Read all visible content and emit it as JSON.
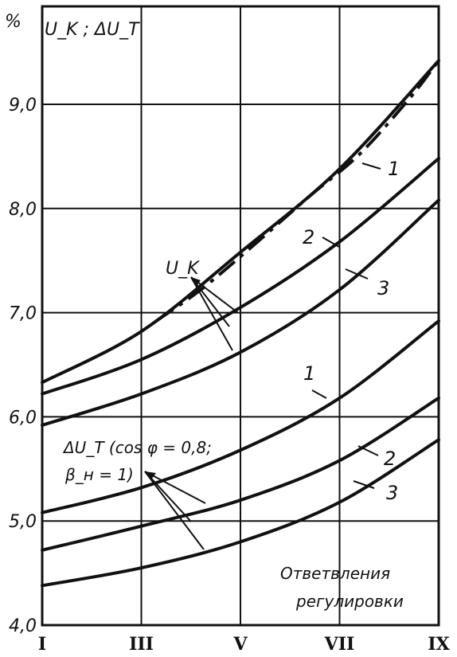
{
  "chart_data": {
    "type": "line",
    "y_unit": "%",
    "y_title": "U_K ; ΔU_T",
    "ylim": [
      4.0,
      9.8
    ],
    "y_ticks": [
      "4,0",
      "5,0",
      "6,0",
      "7,0",
      "8,0",
      "9,0"
    ],
    "x_ticks": [
      "I",
      "III",
      "V",
      "VII",
      "IX"
    ],
    "x_positions": [
      1,
      3,
      5,
      7,
      9
    ],
    "xlim": [
      1,
      9
    ],
    "xlabel_lines": [
      "Ответвления",
      "регулировки"
    ],
    "grid": true,
    "uk_group_label": "U_K",
    "dut_group_label_lines": [
      "ΔU_T (cos φ = 0,8;",
      "β_н = 1)"
    ],
    "series": [
      {
        "group": "uk",
        "name": "1",
        "x": [
          1,
          3,
          5,
          7,
          9
        ],
        "y": [
          6.33,
          6.82,
          7.58,
          8.38,
          9.42
        ]
      },
      {
        "group": "uk",
        "name": "2",
        "x": [
          1,
          3,
          5,
          7,
          9
        ],
        "y": [
          6.22,
          6.55,
          7.05,
          7.68,
          8.48
        ]
      },
      {
        "group": "uk",
        "name": "3",
        "x": [
          1,
          3,
          5,
          7,
          9
        ],
        "y": [
          5.92,
          6.22,
          6.62,
          7.22,
          8.08
        ]
      },
      {
        "group": "dut",
        "name": "1",
        "x": [
          1,
          3,
          5,
          7,
          9
        ],
        "y": [
          5.08,
          5.32,
          5.68,
          6.18,
          6.92
        ]
      },
      {
        "group": "dut",
        "name": "2",
        "x": [
          1,
          3,
          5,
          7,
          9
        ],
        "y": [
          4.72,
          4.95,
          5.2,
          5.58,
          6.18
        ]
      },
      {
        "group": "dut",
        "name": "3",
        "x": [
          1,
          3,
          5,
          7,
          9
        ],
        "y": [
          4.38,
          4.55,
          4.8,
          5.18,
          5.78
        ]
      }
    ],
    "dashdot_curve": {
      "x": [
        3.3,
        4.2,
        5.2,
        6.4,
        7.4,
        8.4,
        9.0
      ],
      "y": [
        6.92,
        7.22,
        7.62,
        8.12,
        8.52,
        9.05,
        9.42
      ]
    }
  }
}
